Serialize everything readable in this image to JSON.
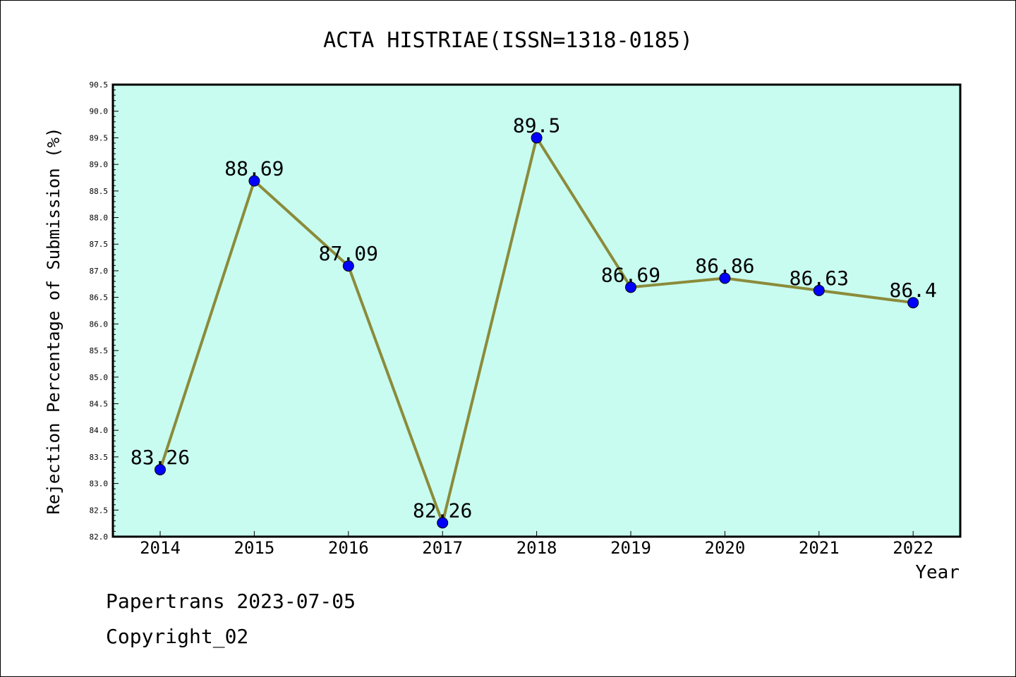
{
  "chart_data": {
    "type": "line",
    "title": "ACTA HISTRIAE(ISSN=1318-0185)",
    "xlabel": "Year",
    "ylabel": "Rejection Percentage of Submission (%)",
    "categories": [
      "2014",
      "2015",
      "2016",
      "2017",
      "2018",
      "2019",
      "2020",
      "2021",
      "2022"
    ],
    "series": [
      {
        "values": [
          83.26,
          88.69,
          87.09,
          82.26,
          89.5,
          86.69,
          86.86,
          86.63,
          86.4
        ],
        "labels": [
          "83.26",
          "88.69",
          "87.09",
          "82.26",
          "89.5",
          "86.69",
          "86.86",
          "86.63",
          "86.4"
        ],
        "line_color": "#8b8b3a",
        "marker_color": "#0000ff"
      }
    ],
    "ylim": [
      82.0,
      90.5
    ],
    "yticks": [
      "82.0",
      "82.5",
      "83.0",
      "83.5",
      "84.0",
      "84.5",
      "85.0",
      "85.5",
      "86.0",
      "86.5",
      "87.0",
      "87.5",
      "88.0",
      "88.5",
      "89.0",
      "89.5",
      "90.0",
      "90.5"
    ],
    "plot_background": "#c8fcf0",
    "grid": false
  },
  "footer": {
    "line1": "Papertrans 2023-07-05",
    "line2": "Copyright_02"
  }
}
